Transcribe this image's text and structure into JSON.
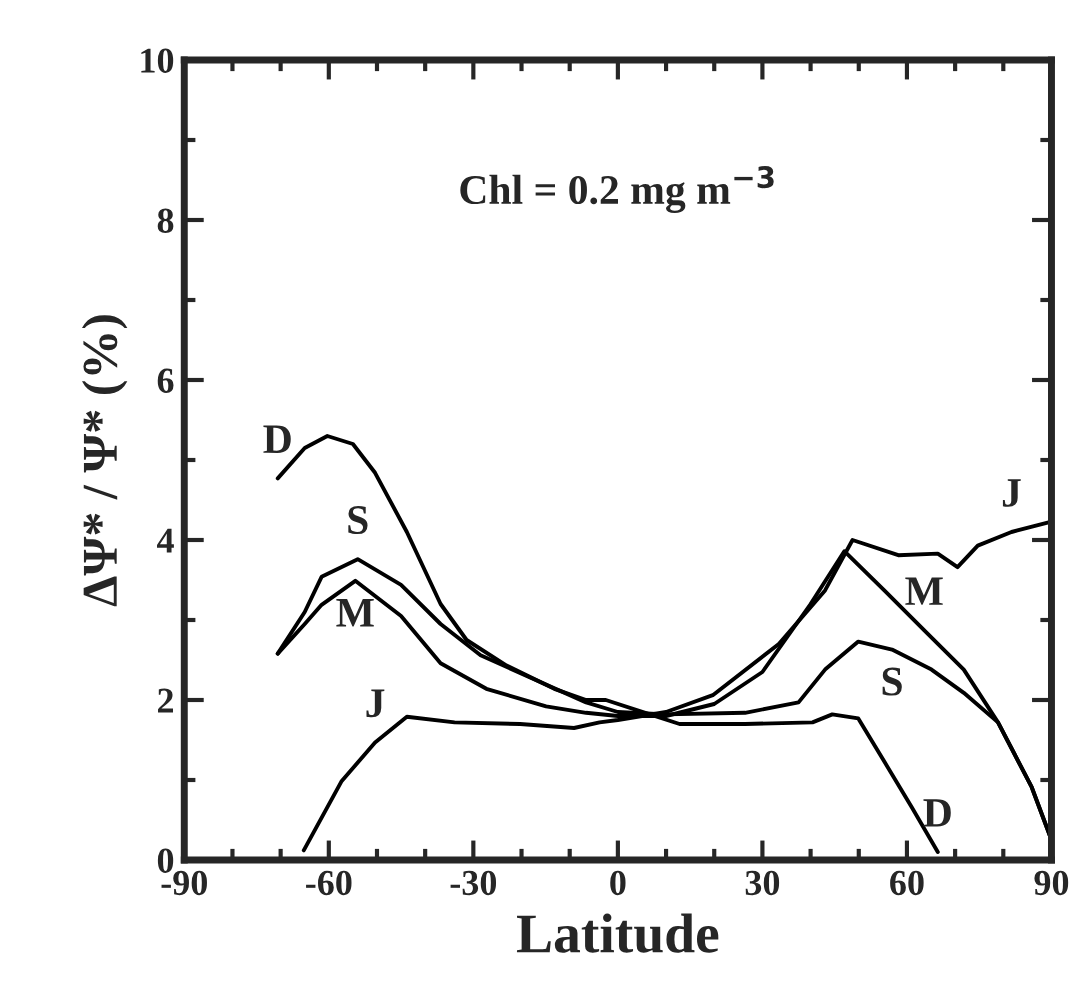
{
  "chart_data": {
    "type": "line",
    "xlabel": "Latitude",
    "ylabel": "ΔΨ* / Ψ* (%)",
    "annotations": [
      "Chl = 0.2 mg m$^{−3}$",
      {
        "text": "D",
        "x": -70.6,
        "y": 4.77
      },
      {
        "text": "S",
        "x": -54,
        "y": 3.76
      },
      {
        "text": "M",
        "x": -54.5,
        "y": 3.49
      },
      {
        "text": "J",
        "x": -50.4,
        "y": 1.47
      },
      {
        "text": "J",
        "x": 81.7,
        "y": 4.1
      },
      {
        "text": "M",
        "x": 63.6,
        "y": 2.87
      },
      {
        "text": "S",
        "x": 56.9,
        "y": 2.63
      },
      {
        "text": "D",
        "x": 66.4,
        "y": 0.1
      }
    ],
    "xlim": [
      -90,
      90
    ],
    "xticks": [
      -90,
      -60,
      -30,
      0,
      30,
      60,
      90
    ],
    "ylim": [
      0,
      10
    ],
    "yticks": [
      0,
      2,
      4,
      6,
      8,
      10
    ],
    "grid": false,
    "legend": false,
    "line_style": "solid",
    "marker": "none",
    "series": [
      {
        "color": "#000000",
        "x": [
          -70.6,
          -65,
          -60.3,
          -55,
          -50.4,
          -43.8,
          -36.8,
          -31.4,
          -23.1,
          -13.2,
          -6.6,
          -2.5,
          5.7,
          12.8,
          26.4,
          40.4,
          44.5,
          49.9,
          55.3,
          61,
          66.4
        ],
        "values": [
          4.77,
          5.15,
          5.3,
          5.2,
          4.84,
          4.1,
          3.2,
          2.75,
          2.43,
          2.14,
          2.0,
          2.0,
          1.84,
          1.7,
          1.7,
          1.72,
          1.82,
          1.77,
          1.23,
          0.66,
          0.1
        ]
      },
      {
        "color": "#000000",
        "x": [
          -70.6,
          -65,
          -61.5,
          -54,
          -45,
          -36.8,
          -28.5,
          -17.4,
          -6.6,
          0,
          10,
          26.4,
          37.5,
          43,
          49.9,
          56.9,
          65.1,
          71.8,
          78.9,
          85.9,
          90
        ],
        "values": [
          2.58,
          3.1,
          3.54,
          3.76,
          3.44,
          2.95,
          2.56,
          2.26,
          1.97,
          1.85,
          1.82,
          1.84,
          1.97,
          2.38,
          2.73,
          2.63,
          2.38,
          2.09,
          1.72,
          0.91,
          0.25
        ]
      },
      {
        "color": "#000000",
        "x": [
          -70.6,
          -65,
          -61.5,
          -54.5,
          -45,
          -36.8,
          -27.3,
          -14.9,
          -6.6,
          0,
          10,
          20,
          30,
          40,
          47,
          55.3,
          63.6,
          71.8,
          78.9,
          85.9,
          90
        ],
        "values": [
          2.58,
          2.95,
          3.19,
          3.49,
          3.05,
          2.46,
          2.14,
          1.92,
          1.84,
          1.8,
          1.8,
          1.95,
          2.35,
          3.2,
          3.86,
          3.37,
          2.87,
          2.38,
          1.72,
          0.91,
          0.25
        ]
      },
      {
        "color": "#000000",
        "x": [
          -65.2,
          -57.4,
          -50.4,
          -43.8,
          -33.9,
          -20.3,
          -9.1,
          -3.8,
          0,
          10,
          19.7,
          33.4,
          43,
          48.7,
          58.2,
          66.4,
          70.5,
          74.7,
          81.7,
          90
        ],
        "values": [
          0.12,
          0.98,
          1.47,
          1.79,
          1.72,
          1.7,
          1.65,
          1.72,
          1.75,
          1.85,
          2.06,
          2.7,
          3.37,
          4.0,
          3.81,
          3.83,
          3.66,
          3.93,
          4.1,
          4.23
        ]
      }
    ]
  }
}
